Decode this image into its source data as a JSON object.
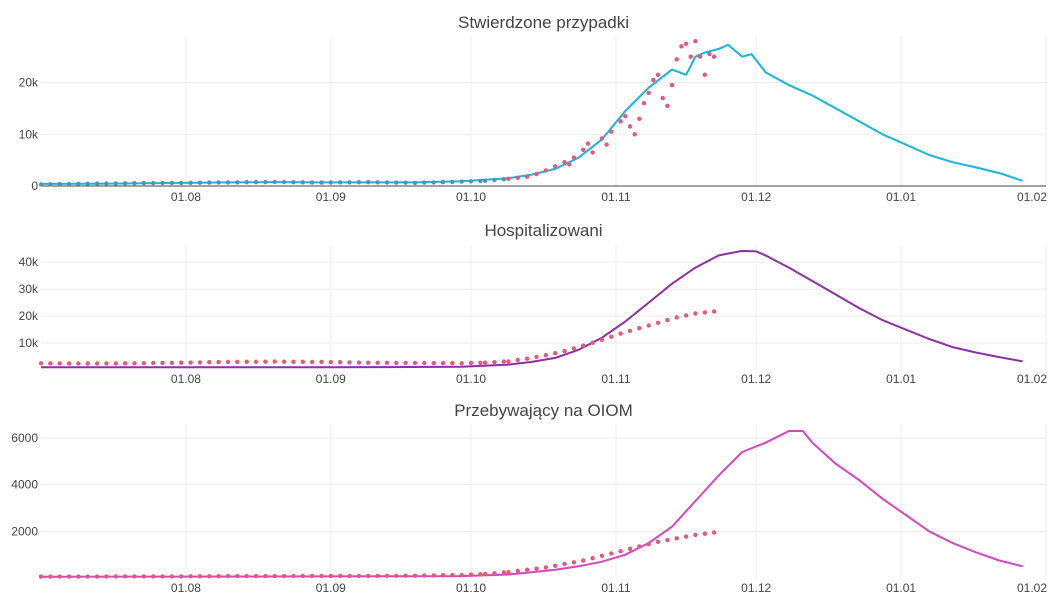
{
  "x_ticks": [
    "01.08",
    "01.09",
    "01.10",
    "01.11",
    "01.12",
    "01.01",
    "01.02"
  ],
  "colors": {
    "cases_line": "#17b5e0",
    "hosp_line": "#8e2fa8",
    "icu_line": "#d646c0",
    "observed_points": "#e8577a",
    "observed_points_cases": "#5b8fb0"
  },
  "chart_data": [
    {
      "type": "line",
      "title": "Stwierdzone przypadki",
      "xlabel": "",
      "ylabel": "",
      "y_ticks": [
        "0",
        "10k",
        "20k"
      ],
      "ylim": [
        0,
        29000
      ],
      "xlim": [
        0,
        210
      ],
      "series": [
        {
          "kind": "line",
          "x": [
            0,
            10,
            20,
            30,
            40,
            50,
            60,
            70,
            80,
            90,
            100,
            105,
            110,
            115,
            120,
            125,
            130,
            135,
            138,
            140,
            142,
            145,
            147,
            150,
            152,
            155,
            160,
            165,
            170,
            175,
            180,
            185,
            190,
            195,
            200,
            205,
            210
          ],
          "y": [
            400,
            450,
            500,
            600,
            700,
            750,
            700,
            700,
            700,
            900,
            1500,
            2200,
            3300,
            5500,
            9000,
            14500,
            19000,
            22500,
            21500,
            25000,
            25800,
            26500,
            27300,
            25000,
            25500,
            22000,
            19500,
            17500,
            15000,
            12500,
            10000,
            8000,
            6000,
            4600,
            3600,
            2500,
            1000
          ]
        },
        {
          "kind": "points",
          "x": [
            0,
            10,
            20,
            30,
            40,
            50,
            60,
            70,
            80,
            90,
            95,
            100,
            104,
            106,
            108,
            110,
            112,
            113,
            114,
            116,
            117,
            118,
            120,
            121,
            122,
            124,
            125,
            126,
            127,
            128,
            129,
            130,
            131,
            132,
            133,
            134,
            135,
            136,
            137,
            138,
            139,
            140,
            141,
            142,
            143,
            144
          ],
          "y": [
            300,
            450,
            550,
            600,
            700,
            800,
            650,
            750,
            600,
            850,
            1000,
            1400,
            1800,
            2300,
            3000,
            3800,
            4600,
            4200,
            5500,
            7000,
            8200,
            6500,
            9200,
            8000,
            10500,
            12500,
            13500,
            11500,
            10000,
            13000,
            16000,
            18000,
            20500,
            21500,
            17000,
            15500,
            19500,
            24500,
            27000,
            27500,
            25000,
            28000,
            25000,
            21500,
            25500,
            25000
          ]
        }
      ]
    },
    {
      "type": "line",
      "title": "Hospitalizowani",
      "xlabel": "",
      "ylabel": "",
      "y_ticks": [
        "10k",
        "20k",
        "30k",
        "40k"
      ],
      "ylim": [
        0,
        46000
      ],
      "xlim": [
        0,
        210
      ],
      "series": [
        {
          "kind": "line",
          "x": [
            0,
            30,
            60,
            90,
            100,
            105,
            110,
            115,
            120,
            125,
            130,
            135,
            140,
            145,
            150,
            153,
            155,
            160,
            165,
            170,
            175,
            180,
            185,
            190,
            195,
            200,
            205,
            210
          ],
          "y": [
            1000,
            1000,
            1000,
            1200,
            2000,
            3000,
            4500,
            7500,
            12000,
            18000,
            25000,
            32000,
            38000,
            42500,
            44200,
            44000,
            42500,
            38000,
            33000,
            28000,
            23000,
            18500,
            15000,
            11500,
            8500,
            6500,
            4800,
            3200
          ]
        },
        {
          "kind": "points",
          "x": [
            0,
            10,
            20,
            30,
            40,
            50,
            60,
            70,
            80,
            90,
            95,
            100,
            104,
            108,
            112,
            116,
            120,
            124,
            128,
            132,
            136,
            140,
            144
          ],
          "y": [
            2500,
            2400,
            2500,
            2700,
            3000,
            3100,
            3000,
            2700,
            2600,
            2500,
            2700,
            3200,
            4200,
            5500,
            7000,
            9000,
            11200,
            13500,
            15500,
            17500,
            19500,
            21000,
            21700
          ]
        }
      ]
    },
    {
      "type": "line",
      "title": "Przebywający na OIOM",
      "xlabel": "",
      "ylabel": "",
      "y_ticks": [
        "2000",
        "4000",
        "6000"
      ],
      "ylim": [
        0,
        6600
      ],
      "xlim": [
        0,
        210
      ],
      "series": [
        {
          "kind": "line",
          "x": [
            0,
            30,
            60,
            90,
            100,
            105,
            110,
            115,
            120,
            125,
            130,
            135,
            140,
            145,
            150,
            155,
            160,
            163,
            165,
            170,
            175,
            180,
            185,
            190,
            195,
            200,
            205,
            210
          ],
          "y": [
            50,
            60,
            70,
            80,
            150,
            250,
            350,
            500,
            700,
            1000,
            1500,
            2200,
            3300,
            4400,
            5400,
            5800,
            6300,
            6300,
            5800,
            4900,
            4200,
            3400,
            2700,
            2000,
            1500,
            1100,
            750,
            500
          ]
        },
        {
          "kind": "points",
          "x": [
            0,
            10,
            20,
            30,
            40,
            50,
            60,
            70,
            80,
            90,
            95,
            100,
            104,
            108,
            112,
            116,
            120,
            124,
            128,
            132,
            136,
            140,
            144
          ],
          "y": [
            60,
            60,
            70,
            70,
            80,
            80,
            90,
            90,
            100,
            130,
            170,
            250,
            350,
            450,
            600,
            750,
            950,
            1150,
            1350,
            1550,
            1700,
            1850,
            1950
          ]
        }
      ]
    }
  ]
}
